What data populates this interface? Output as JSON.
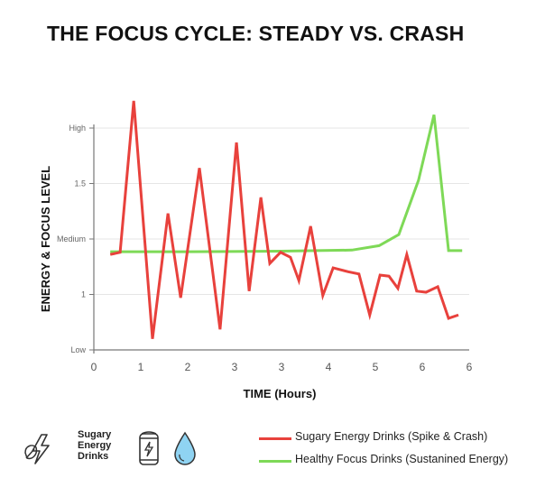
{
  "chart_data": {
    "type": "line",
    "title": "THE FOCUS CYCLE: STEADY VS. CRASH",
    "xlabel": "TIME (Hours)",
    "ylabel": "ENERGY & FOCUS LEVEL",
    "x_tick_labels": [
      "0",
      "1",
      "2",
      "3",
      "3",
      "4",
      "5",
      "6",
      "6"
    ],
    "y_tick_labels": [
      "Low",
      "1",
      "Medium",
      "1.5",
      "High"
    ],
    "xlim": [
      0,
      8
    ],
    "ylim": [
      0,
      4
    ],
    "grid": true,
    "legend_position": "bottom-right",
    "series": [
      {
        "name": "Sugary Energy Drinks (Spike & Crash)",
        "color": "#e8413c",
        "x": [
          0.35,
          0.56,
          0.85,
          1.25,
          1.58,
          1.85,
          2.25,
          2.69,
          3.04,
          3.31,
          3.56,
          3.75,
          3.98,
          4.19,
          4.37,
          4.62,
          4.88,
          5.1,
          5.42,
          5.65,
          5.88,
          6.1,
          6.29,
          6.48,
          6.67,
          6.88,
          7.08,
          7.33,
          7.56,
          7.77
        ],
        "y": [
          1.72,
          1.76,
          4.49,
          0.2,
          2.46,
          0.94,
          3.28,
          0.37,
          3.74,
          1.06,
          2.75,
          1.56,
          1.76,
          1.67,
          1.25,
          2.23,
          0.98,
          1.48,
          1.41,
          1.37,
          0.63,
          1.35,
          1.33,
          1.11,
          1.72,
          1.06,
          1.04,
          1.14,
          0.57,
          0.63
        ]
      },
      {
        "name": "Healthy Focus Drinks (Sustanined Energy)",
        "color": "#7ed957",
        "x": [
          0.35,
          2,
          4,
          5.5,
          6.08,
          6.5,
          6.92,
          7.25,
          7.56,
          7.85
        ],
        "y": [
          1.77,
          1.77,
          1.78,
          1.8,
          1.88,
          2.08,
          3.06,
          4.24,
          1.79,
          1.79
        ]
      }
    ]
  },
  "icon_label": "Sugary Energy Drinks",
  "icons": [
    "leaf-bolt-icon",
    "energy-can-icon",
    "water-drop-icon"
  ]
}
